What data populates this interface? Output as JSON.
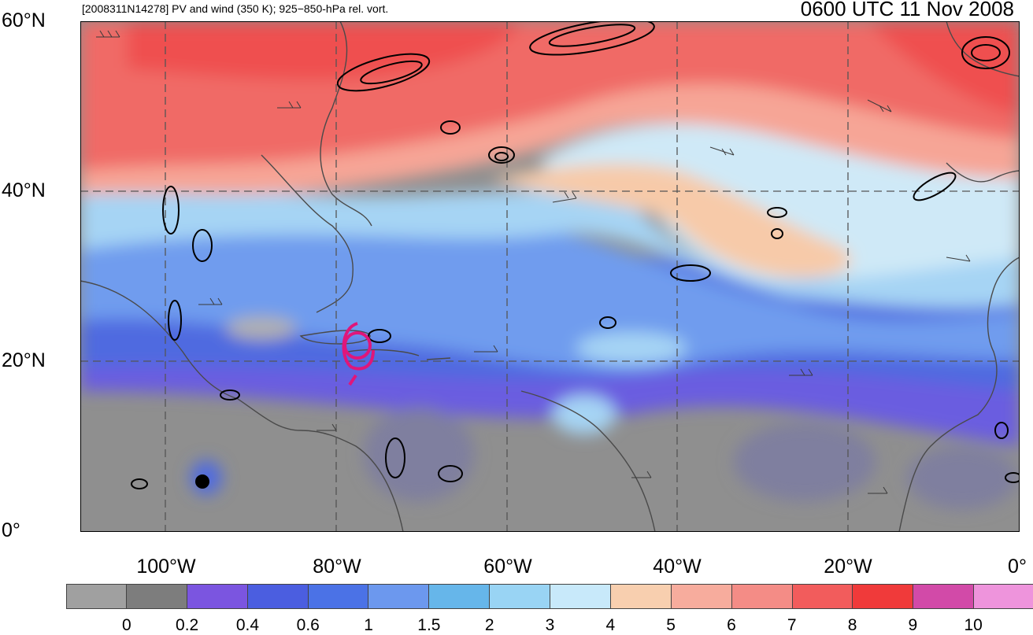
{
  "header": {
    "left_title": "[2008311N14278] PV and wind (350 K); 925−850-hPa rel. vort.",
    "right_title": "0600 UTC 11 Nov 2008"
  },
  "axes": {
    "lat_labels": [
      "60°N",
      "40°N",
      "20°N",
      "0°"
    ],
    "lon_labels": [
      "100°W",
      "80°W",
      "60°W",
      "40°W",
      "20°W",
      "0°"
    ]
  },
  "map": {
    "extent": {
      "lon": [
        -110,
        0
      ],
      "lat": [
        0,
        60
      ]
    },
    "field_colors": {
      "low_pv": "#8f8f8f",
      "tropical_blue": "#5b78e6",
      "mid_blue": "#6fa0ee",
      "pale_blue": "#c7e5f6",
      "peach": "#f7c9a9",
      "salmon": "#f7a597",
      "red": "#f06666",
      "magenta": "#e07ad6"
    },
    "storm_marker_color": "#e0167a"
  },
  "colorbar": {
    "colors": [
      "#a0a0a0",
      "#7d7d7d",
      "#7b55e0",
      "#4b5ee0",
      "#4b72e6",
      "#6c98ee",
      "#66b6ea",
      "#99d4f4",
      "#c8e9fa",
      "#f8cfaf",
      "#f7ac9d",
      "#f48c86",
      "#f25c5c",
      "#f03a3a",
      "#d24aa8",
      "#ee94dc"
    ],
    "labels": [
      "0",
      "0.2",
      "0.4",
      "0.6",
      "1",
      "1.5",
      "2",
      "3",
      "4",
      "5",
      "6",
      "7",
      "8",
      "9",
      "10"
    ]
  }
}
